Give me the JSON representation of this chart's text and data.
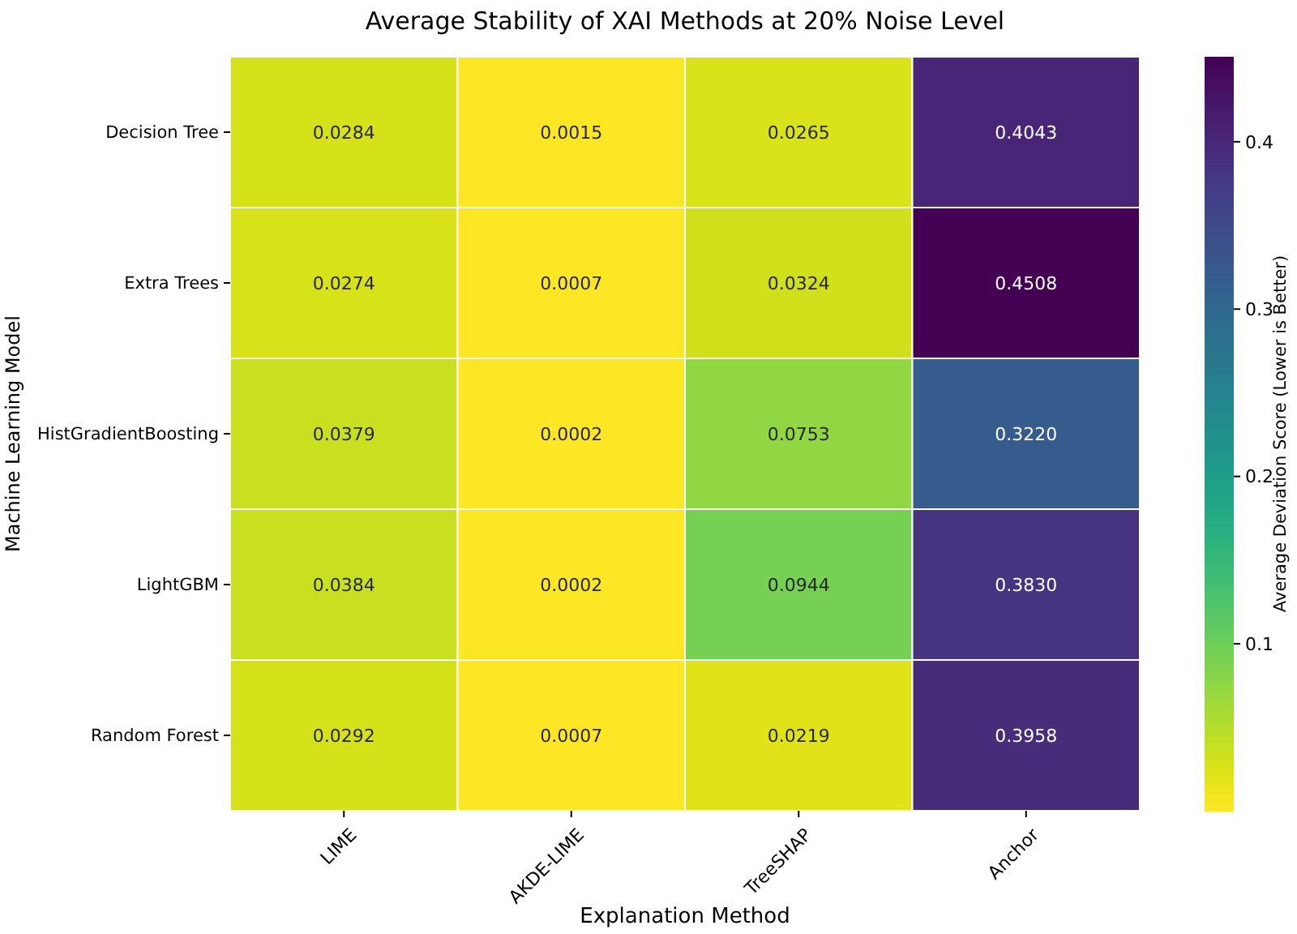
{
  "chart_data": {
    "type": "heatmap",
    "title": "Average Stability of XAI Methods at 20% Noise Level",
    "xlabel": "Explanation Method",
    "ylabel": "Machine Learning Model",
    "clabel": "Average Deviation Score (Lower is Better)",
    "categories": [
      "LIME",
      "AKDE-LIME",
      "TreeSHAP",
      "Anchor"
    ],
    "y_categories": [
      "Decision Tree",
      "Extra Trees",
      "HistGradientBoosting",
      "LightGBM",
      "Random Forest"
    ],
    "cells": [
      [
        0.0284,
        0.0015,
        0.0265,
        0.4043
      ],
      [
        0.0274,
        0.0007,
        0.0324,
        0.4508
      ],
      [
        0.0379,
        0.0002,
        0.0753,
        0.322
      ],
      [
        0.0384,
        0.0002,
        0.0944,
        0.383
      ],
      [
        0.0292,
        0.0007,
        0.0219,
        0.3958
      ]
    ],
    "cell_labels": [
      [
        "0.0284",
        "0.0015",
        "0.0265",
        "0.4043"
      ],
      [
        "0.0274",
        "0.0007",
        "0.0324",
        "0.4508"
      ],
      [
        "0.0379",
        "0.0002",
        "0.0753",
        "0.3220"
      ],
      [
        "0.0384",
        "0.0002",
        "0.0944",
        "0.3830"
      ],
      [
        "0.0292",
        "0.0007",
        "0.0219",
        "0.3958"
      ]
    ],
    "clim": [
      0.0002,
      0.4508
    ],
    "cticks": [
      0.1,
      0.2,
      0.3,
      0.4
    ]
  }
}
